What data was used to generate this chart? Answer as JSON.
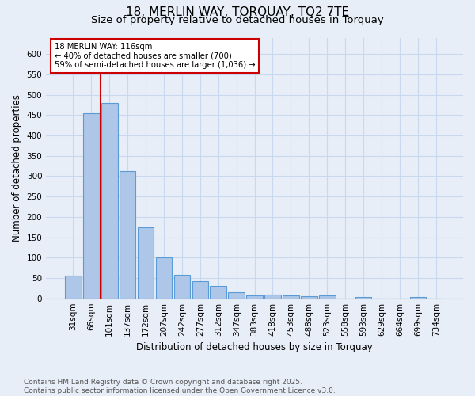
{
  "title_line1": "18, MERLIN WAY, TORQUAY, TQ2 7TE",
  "title_line2": "Size of property relative to detached houses in Torquay",
  "xlabel": "Distribution of detached houses by size in Torquay",
  "ylabel": "Number of detached properties",
  "categories": [
    "31sqm",
    "66sqm",
    "101sqm",
    "137sqm",
    "172sqm",
    "207sqm",
    "242sqm",
    "277sqm",
    "312sqm",
    "347sqm",
    "383sqm",
    "418sqm",
    "453sqm",
    "488sqm",
    "523sqm",
    "558sqm",
    "593sqm",
    "629sqm",
    "664sqm",
    "699sqm",
    "734sqm"
  ],
  "values": [
    55,
    455,
    480,
    313,
    175,
    100,
    58,
    43,
    30,
    14,
    8,
    9,
    8,
    5,
    8,
    0,
    4,
    0,
    0,
    4,
    0
  ],
  "bar_color": "#aec6e8",
  "bar_edge_color": "#5b9bd5",
  "grid_color": "#c8d8ee",
  "bg_color": "#e8eef8",
  "annotation_text": "18 MERLIN WAY: 116sqm\n← 40% of detached houses are smaller (700)\n59% of semi-detached houses are larger (1,036) →",
  "annotation_box_color": "#ffffff",
  "annotation_edge_color": "#cc0000",
  "vline_x_index": 2,
  "vline_color": "#cc0000",
  "ylim": [
    0,
    640
  ],
  "yticks": [
    0,
    50,
    100,
    150,
    200,
    250,
    300,
    350,
    400,
    450,
    500,
    550,
    600
  ],
  "footnote": "Contains HM Land Registry data © Crown copyright and database right 2025.\nContains public sector information licensed under the Open Government Licence v3.0.",
  "title_fontsize": 11,
  "subtitle_fontsize": 9.5,
  "axis_label_fontsize": 8.5,
  "tick_fontsize": 7.5,
  "footnote_fontsize": 6.5
}
